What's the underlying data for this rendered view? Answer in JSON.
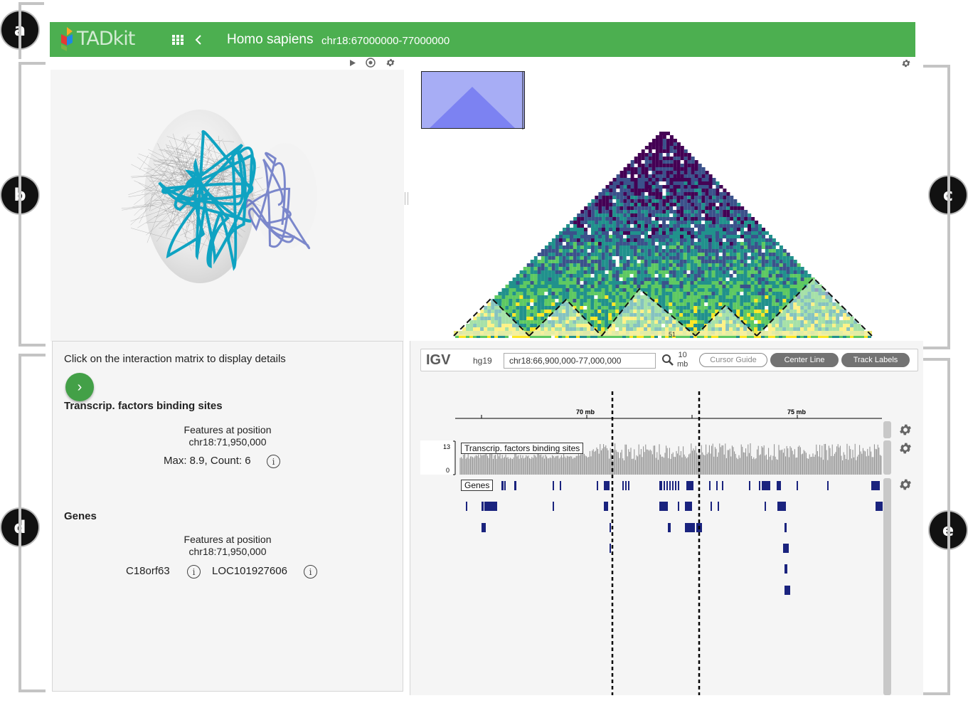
{
  "callouts": [
    "a",
    "b",
    "c",
    "d",
    "e"
  ],
  "header": {
    "brand": "TADkit",
    "species": "Homo sapiens",
    "region": "chr18:67000000-77000000",
    "bg_color": "#4caf50"
  },
  "matrix": {
    "bottom_label": "51",
    "palette": [
      "#440154",
      "#3b528b",
      "#21918c",
      "#5ec962",
      "#fde725"
    ]
  },
  "details": {
    "instruction": "Click on the interaction matrix to display details",
    "next_icon": "›",
    "tf": {
      "title": "Transcrip. factors binding sites",
      "features_label": "Features at position",
      "position": "chr18:71,950,000",
      "stats": "Max: 8.9, Count: 6"
    },
    "genes": {
      "title": "Genes",
      "features_label": "Features at position",
      "position": "chr18:71,950,000",
      "gene1": "C18orf63",
      "gene2": "LOC101927606"
    },
    "info_glyph": "i"
  },
  "igv": {
    "logo": "IGV",
    "genome": "hg19",
    "locus": "chr18:66,900,000-77,000,000",
    "window_size_value": "10",
    "window_size_unit": "mb",
    "cursor_guide": "Cursor Guide",
    "center_line": "Center Line",
    "track_labels": "Track Labels",
    "ruler_70": "70 mb",
    "ruler_75": "75 mb",
    "scale_max": "13",
    "scale_min": "0",
    "tf_track_label": "Transcrip. factors binding sites",
    "genes_track_label": "Genes",
    "gene_color": "#1a237e",
    "bar_color": "#8c8c8c"
  }
}
